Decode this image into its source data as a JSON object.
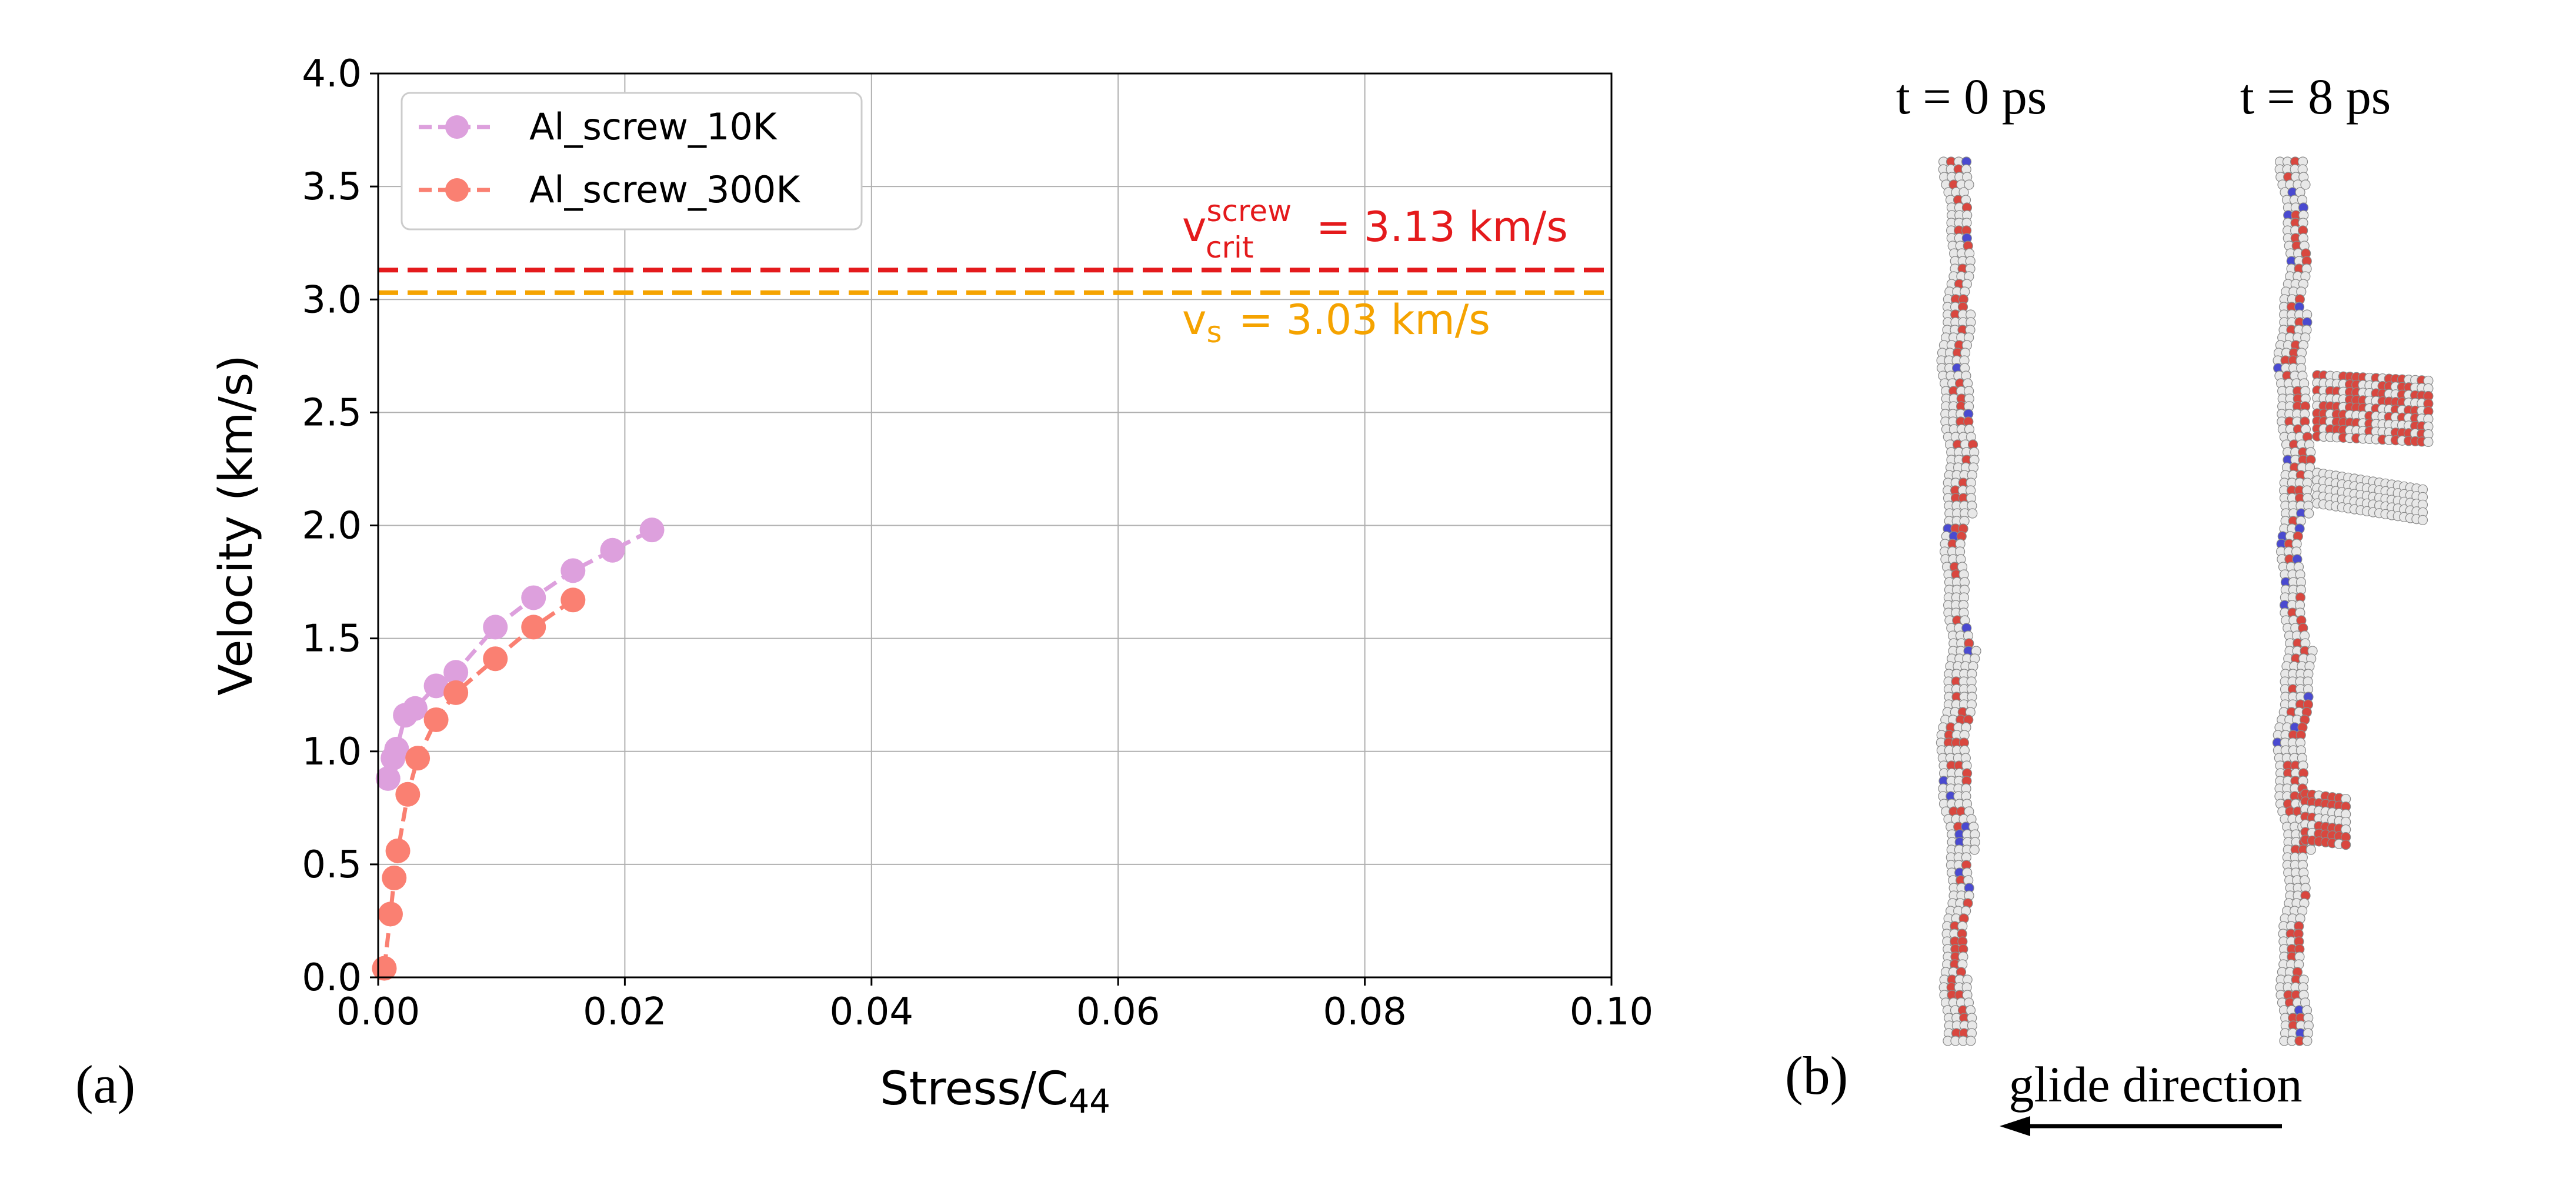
{
  "panel_labels": {
    "a": "(a)",
    "b": "(b)"
  },
  "chart_data": {
    "type": "line",
    "xlabel": "Stress/C",
    "xlabel_sub": "44",
    "ylabel": "Velocity (km/s)",
    "xlim": [
      0.0,
      0.1
    ],
    "ylim": [
      0.0,
      4.0
    ],
    "xticks": [
      "0.00",
      "0.02",
      "0.04",
      "0.06",
      "0.08",
      "0.10"
    ],
    "xtick_values": [
      0.0,
      0.02,
      0.04,
      0.06,
      0.08,
      0.1
    ],
    "yticks": [
      "0.0",
      "0.5",
      "1.0",
      "1.5",
      "2.0",
      "2.5",
      "3.0",
      "3.5",
      "4.0"
    ],
    "ytick_values": [
      0.0,
      0.5,
      1.0,
      1.5,
      2.0,
      2.5,
      3.0,
      3.5,
      4.0
    ],
    "grid": true,
    "legend_position": "top-left",
    "series": [
      {
        "name": "Al_screw_10K",
        "color": "#dda0dd",
        "x": [
          0.0008,
          0.0012,
          0.0015,
          0.0022,
          0.003,
          0.0047,
          0.0063,
          0.0095,
          0.0126,
          0.0158,
          0.019,
          0.0222
        ],
        "y": [
          0.88,
          0.97,
          1.01,
          1.16,
          1.19,
          1.29,
          1.35,
          1.55,
          1.68,
          1.8,
          1.89,
          1.98
        ]
      },
      {
        "name": "Al_screw_300K",
        "color": "#fa8072",
        "x": [
          0.0005,
          0.001,
          0.0013,
          0.0016,
          0.0024,
          0.0032,
          0.0047,
          0.0063,
          0.0095,
          0.0126,
          0.0158
        ],
        "y": [
          0.04,
          0.28,
          0.44,
          0.56,
          0.81,
          0.97,
          1.14,
          1.26,
          1.41,
          1.55,
          1.67
        ]
      }
    ],
    "reference_lines": [
      {
        "y": 3.13,
        "color": "#e41a1c",
        "label_main": "v",
        "label_sub": "crit",
        "label_sup": "screw",
        "label_value": "= 3.13 km/s"
      },
      {
        "y": 3.03,
        "color": "#f5a300",
        "label_main": "v",
        "label_sub": "s",
        "label_value": "= 3.03 km/s"
      }
    ]
  },
  "panel_b": {
    "time_labels": [
      "t = 0 ps",
      "t = 8 ps"
    ],
    "glide_label": "glide direction"
  }
}
